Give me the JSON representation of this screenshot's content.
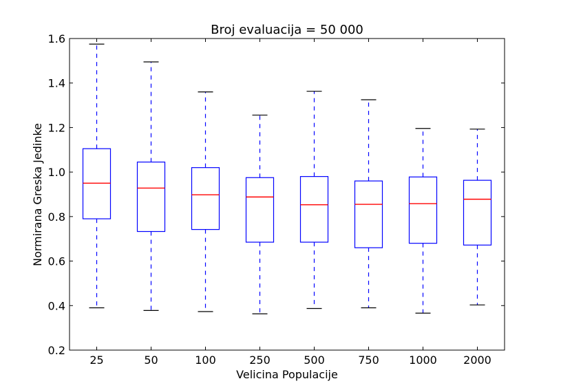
{
  "chart_data": {
    "type": "box",
    "title": "Broj evaluacija = 50 000",
    "xlabel": "Velicina Populacije",
    "ylabel": "Normirana Greska Jedinke",
    "ylim": [
      0.2,
      1.6
    ],
    "yticks": [
      "0.2",
      "0.4",
      "0.6",
      "0.8",
      "1.0",
      "1.2",
      "1.4",
      "1.6"
    ],
    "categories": [
      "25",
      "50",
      "100",
      "250",
      "500",
      "750",
      "1000",
      "2000"
    ],
    "boxes": [
      {
        "whislo": 0.39,
        "q1": 0.79,
        "med": 0.95,
        "q3": 1.105,
        "whishi": 1.575
      },
      {
        "whislo": 0.378,
        "q1": 0.733,
        "med": 0.928,
        "q3": 1.045,
        "whishi": 1.495
      },
      {
        "whislo": 0.373,
        "q1": 0.742,
        "med": 0.898,
        "q3": 1.02,
        "whishi": 1.36
      },
      {
        "whislo": 0.363,
        "q1": 0.685,
        "med": 0.888,
        "q3": 0.975,
        "whishi": 1.256
      },
      {
        "whislo": 0.387,
        "q1": 0.685,
        "med": 0.853,
        "q3": 0.98,
        "whishi": 1.363
      },
      {
        "whislo": 0.39,
        "q1": 0.66,
        "med": 0.855,
        "q3": 0.96,
        "whishi": 1.325
      },
      {
        "whislo": 0.366,
        "q1": 0.68,
        "med": 0.858,
        "q3": 0.978,
        "whishi": 1.196
      },
      {
        "whislo": 0.403,
        "q1": 0.672,
        "med": 0.878,
        "q3": 0.963,
        "whishi": 1.193
      }
    ],
    "grid": false,
    "colors": {
      "box": "#0000ff",
      "median": "#ff0000",
      "cap": "#000000",
      "whisker": "#0000ff"
    }
  }
}
